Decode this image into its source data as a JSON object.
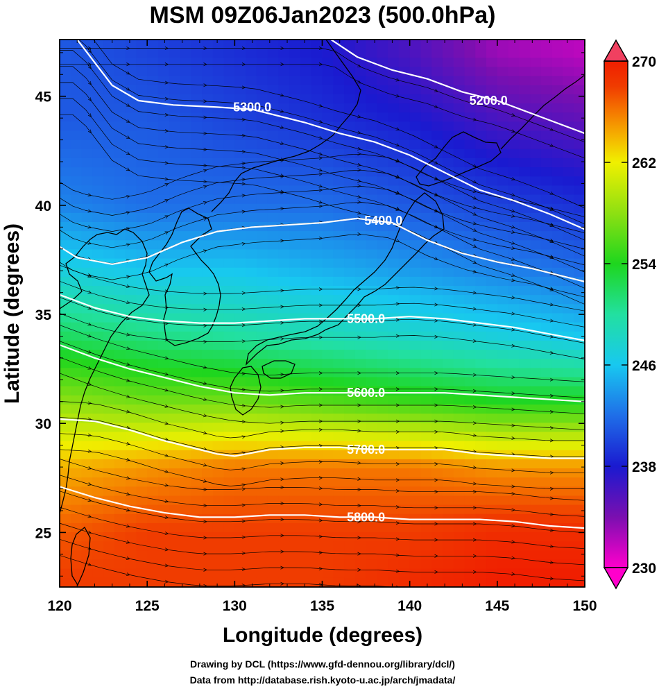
{
  "title": "MSM 09Z06Jan2023 (500.0hPa)",
  "credits": [
    "Drawing by DCL (https://www.gfd-dennou.org/library/dcl/)",
    "Data from http://database.rish.kyoto-u.ac.jp/arch/jmadata/"
  ],
  "colors": {
    "contour_line": "#ffffff",
    "streamline": "#000000",
    "coastline": "#000000"
  },
  "colorbar": {
    "min": 230,
    "max": 270,
    "tick_labels": [
      "270",
      "262",
      "254",
      "246",
      "238",
      "230"
    ],
    "stops": [
      {
        "value": 230,
        "color": "#ff00cc"
      },
      {
        "value": 234,
        "color": "#7a0fb0"
      },
      {
        "value": 238,
        "color": "#1a1ad0"
      },
      {
        "value": 242,
        "color": "#1f6ee8"
      },
      {
        "value": 246,
        "color": "#18c8f0"
      },
      {
        "value": 250,
        "color": "#22e0a0"
      },
      {
        "value": 254,
        "color": "#1ed61e"
      },
      {
        "value": 258,
        "color": "#8ee012"
      },
      {
        "value": 262,
        "color": "#f0f000"
      },
      {
        "value": 264,
        "color": "#f5b400"
      },
      {
        "value": 266,
        "color": "#f57800"
      },
      {
        "value": 268,
        "color": "#f03c00"
      },
      {
        "value": 270,
        "color": "#f01e00"
      }
    ]
  },
  "chart_data": {
    "type": "heatmap",
    "title": "MSM 09Z06Jan2023 (500.0hPa)",
    "xlabel": "Longitude (degrees)",
    "ylabel": "Latitude  (degrees)",
    "xlim": [
      120,
      150
    ],
    "ylim": [
      22.5,
      47.6
    ],
    "xticks": [
      120,
      125,
      130,
      135,
      140,
      145,
      150
    ],
    "yticks": [
      25,
      30,
      35,
      40,
      45
    ],
    "xtick_labels": [
      "120",
      "125",
      "130",
      "135",
      "140",
      "145",
      "150"
    ],
    "ytick_labels": [
      "25",
      "30",
      "35",
      "40",
      "45"
    ],
    "field": "temperature (shaded), geopotential height contours, wind streamlines",
    "temperature_approx": [
      {
        "lat": 47,
        "values": [
          241,
          240,
          239,
          238,
          236,
          233,
          232
        ]
      },
      {
        "lat": 44,
        "values": [
          241,
          241,
          240,
          239,
          238,
          236,
          235
        ]
      },
      {
        "lat": 40,
        "values": [
          243,
          242,
          242,
          242,
          241,
          240,
          239
        ]
      },
      {
        "lat": 37,
        "values": [
          247,
          246,
          246,
          245,
          244,
          243,
          242
        ]
      },
      {
        "lat": 34,
        "values": [
          252,
          251,
          250,
          249,
          248,
          247,
          246
        ]
      },
      {
        "lat": 31,
        "values": [
          258,
          257,
          257,
          256,
          255,
          254,
          254
        ]
      },
      {
        "lat": 28,
        "values": [
          264,
          265,
          266,
          266,
          266,
          265,
          265
        ]
      },
      {
        "lat": 25,
        "values": [
          267,
          268,
          268,
          268,
          268,
          269,
          269
        ]
      },
      {
        "lat": 23,
        "values": [
          268,
          268,
          268,
          268,
          269,
          270,
          270
        ]
      }
    ],
    "contours": [
      {
        "label": "5200.0",
        "label_at": [
          144.5,
          44.8
        ],
        "points": [
          [
            135.5,
            47.6
          ],
          [
            137,
            46.8
          ],
          [
            139,
            46.2
          ],
          [
            141,
            45.8
          ],
          [
            143,
            45.2
          ],
          [
            145,
            44.8
          ],
          [
            147,
            44.2
          ],
          [
            150,
            43.3
          ]
        ]
      },
      {
        "label": "5300.0",
        "label_at": [
          131,
          44.5
        ],
        "points": [
          [
            121,
            47.6
          ],
          [
            123,
            45.5
          ],
          [
            124.5,
            44.8
          ],
          [
            126.5,
            44.6
          ],
          [
            129,
            44.5
          ],
          [
            131,
            44.4
          ],
          [
            134,
            43.8
          ],
          [
            136,
            43.3
          ],
          [
            138,
            42.9
          ],
          [
            140,
            42.3
          ],
          [
            142,
            41.5
          ],
          [
            144,
            40.7
          ],
          [
            146,
            40.2
          ],
          [
            148,
            39.6
          ],
          [
            150,
            38.9
          ]
        ]
      },
      {
        "label": "5400.0",
        "label_at": [
          138.5,
          39.3
        ],
        "points": [
          [
            120,
            38.1
          ],
          [
            121,
            37.6
          ],
          [
            123,
            37.3
          ],
          [
            125,
            37.6
          ],
          [
            127,
            38.3
          ],
          [
            129,
            38.8
          ],
          [
            131,
            39.0
          ],
          [
            133,
            39.1
          ],
          [
            135,
            39.2
          ],
          [
            137,
            39.4
          ],
          [
            139,
            39.2
          ],
          [
            141,
            38.4
          ],
          [
            143,
            37.8
          ],
          [
            145,
            37.4
          ],
          [
            147,
            37.1
          ],
          [
            150,
            36.5
          ]
        ]
      },
      {
        "label": "5500.0",
        "label_at": [
          137.5,
          34.8
        ],
        "points": [
          [
            120,
            35.9
          ],
          [
            122,
            35.3
          ],
          [
            124,
            34.9
          ],
          [
            126,
            34.7
          ],
          [
            128,
            34.6
          ],
          [
            130,
            34.6
          ],
          [
            132,
            34.7
          ],
          [
            134,
            34.8
          ],
          [
            136,
            34.8
          ],
          [
            138,
            34.8
          ],
          [
            140,
            34.9
          ],
          [
            142,
            34.8
          ],
          [
            144,
            34.6
          ],
          [
            146,
            34.4
          ],
          [
            148,
            34.1
          ],
          [
            150,
            33.8
          ]
        ]
      },
      {
        "label": "5600.0",
        "label_at": [
          137.5,
          31.4
        ],
        "points": [
          [
            120,
            33.6
          ],
          [
            122,
            33.0
          ],
          [
            124,
            32.5
          ],
          [
            126,
            32.1
          ],
          [
            128,
            31.7
          ],
          [
            130,
            31.4
          ],
          [
            132,
            31.3
          ],
          [
            134,
            31.4
          ],
          [
            136,
            31.4
          ],
          [
            138,
            31.4
          ],
          [
            140,
            31.4
          ],
          [
            142,
            31.4
          ],
          [
            144,
            31.3
          ],
          [
            146,
            31.2
          ],
          [
            148,
            31.1
          ],
          [
            150,
            31.0
          ]
        ]
      },
      {
        "label": "5700.0",
        "label_at": [
          137.5,
          28.8
        ],
        "points": [
          [
            120,
            30.2
          ],
          [
            122,
            30.1
          ],
          [
            124,
            29.7
          ],
          [
            126,
            29.2
          ],
          [
            128,
            28.8
          ],
          [
            129,
            28.6
          ],
          [
            130,
            28.5
          ],
          [
            132,
            28.8
          ],
          [
            134,
            28.9
          ],
          [
            136,
            28.9
          ],
          [
            138,
            28.8
          ],
          [
            140,
            28.8
          ],
          [
            142,
            28.8
          ],
          [
            144,
            28.6
          ],
          [
            146,
            28.5
          ],
          [
            148,
            28.4
          ],
          [
            150,
            28.4
          ]
        ]
      },
      {
        "label": "5800.0",
        "label_at": [
          137.5,
          25.7
        ],
        "points": [
          [
            120,
            27.1
          ],
          [
            122,
            26.6
          ],
          [
            124,
            26.2
          ],
          [
            126,
            25.9
          ],
          [
            128,
            25.7
          ],
          [
            130,
            25.7
          ],
          [
            132,
            25.8
          ],
          [
            134,
            25.8
          ],
          [
            136,
            25.7
          ],
          [
            138,
            25.7
          ],
          [
            140,
            25.6
          ],
          [
            142,
            25.6
          ],
          [
            144,
            25.6
          ],
          [
            146,
            25.5
          ],
          [
            148,
            25.3
          ],
          [
            150,
            25.2
          ]
        ]
      }
    ]
  }
}
